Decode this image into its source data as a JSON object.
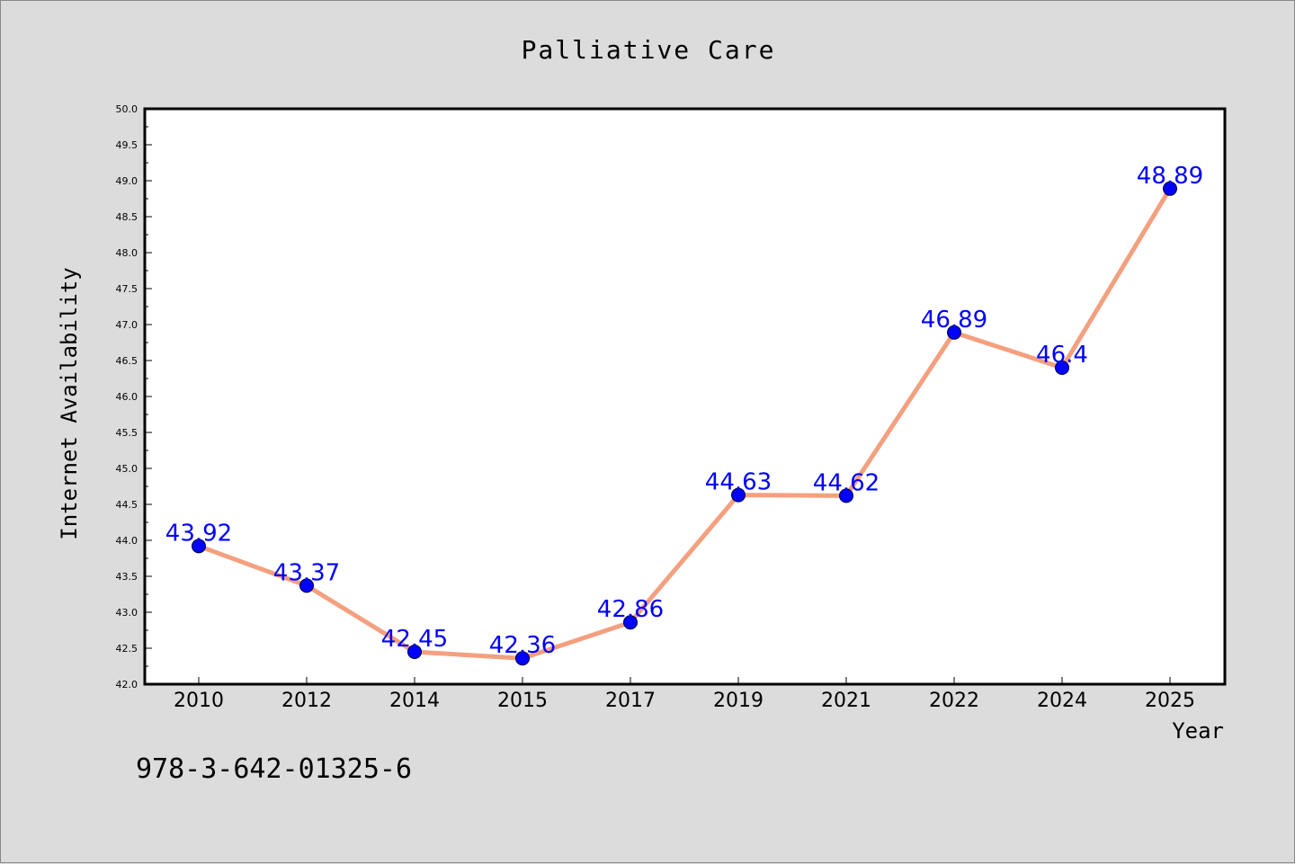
{
  "chart_data": {
    "type": "line",
    "title": "Palliative Care",
    "xlabel": "Year",
    "ylabel": "Internet Availability",
    "categories": [
      "2010",
      "2012",
      "2014",
      "2015",
      "2017",
      "2019",
      "2021",
      "2022",
      "2024",
      "2025"
    ],
    "series": [
      {
        "values": [
          43.92,
          43.37,
          42.45,
          42.36,
          42.86,
          44.63,
          44.62,
          46.89,
          46.4,
          48.89
        ],
        "labels": [
          "43.92",
          "43.37",
          "42.45",
          "42.36",
          "42.86",
          "44.63",
          "44.62",
          "46.89",
          "46.4",
          "48.89"
        ]
      }
    ],
    "ylim": [
      42.0,
      50.0
    ],
    "yticks": [
      "42.0",
      "42.5",
      "43.0",
      "43.5",
      "44.0",
      "44.5",
      "45.0",
      "45.5",
      "46.0",
      "46.5",
      "47.0",
      "47.5",
      "48.0",
      "48.5",
      "49.0",
      "49.5",
      "50.0"
    ],
    "grid": false,
    "line_color": "#f4a07f",
    "marker_color": "#0000ff",
    "label_color": "#0000ff"
  },
  "annotation": {
    "isbn": "978-3-642-01325-6"
  }
}
